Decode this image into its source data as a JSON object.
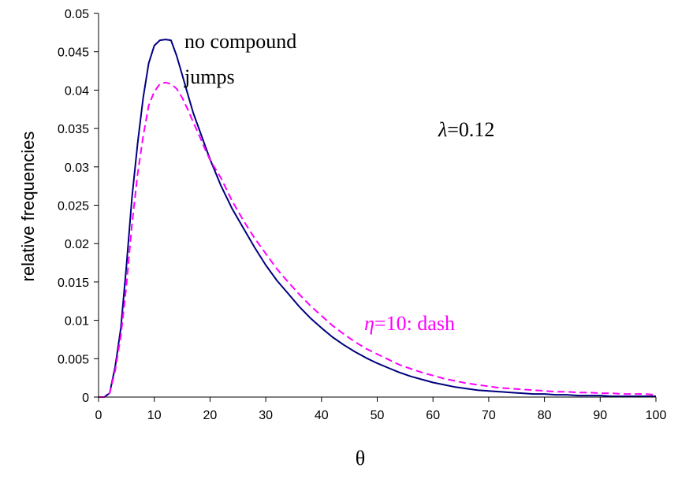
{
  "chart_data": {
    "type": "line",
    "xlabel": "θ",
    "ylabel": "relative frequencies",
    "xlim": [
      0,
      100
    ],
    "ylim": [
      0,
      0.05
    ],
    "x_ticks": [
      "0",
      "10",
      "20",
      "30",
      "40",
      "50",
      "60",
      "70",
      "80",
      "90",
      "100"
    ],
    "y_ticks": [
      "0",
      "0.005",
      "0.01",
      "0.015",
      "0.02",
      "0.025",
      "0.03",
      "0.035",
      "0.04",
      "0.045",
      "0.05"
    ],
    "grid": false,
    "series": [
      {
        "color": "#000080",
        "style": "solid",
        "x": [
          0,
          1,
          2,
          3,
          4,
          5,
          6,
          7,
          8,
          9,
          10,
          11,
          12,
          13,
          14,
          15,
          16,
          17,
          18,
          19,
          20,
          22,
          24,
          26,
          28,
          30,
          32,
          34,
          36,
          38,
          40,
          42,
          44,
          46,
          48,
          50,
          52,
          54,
          56,
          58,
          60,
          62,
          64,
          66,
          68,
          70,
          72,
          74,
          76,
          78,
          80,
          82,
          84,
          86,
          88,
          90,
          92,
          94,
          96,
          98,
          100
        ],
        "y": [
          0,
          0,
          0.0005,
          0.004,
          0.009,
          0.017,
          0.026,
          0.033,
          0.039,
          0.0435,
          0.0458,
          0.0465,
          0.0466,
          0.0465,
          0.0445,
          0.042,
          0.0395,
          0.037,
          0.035,
          0.033,
          0.031,
          0.0275,
          0.0245,
          0.022,
          0.0195,
          0.0172,
          0.0152,
          0.0135,
          0.0118,
          0.0103,
          0.009,
          0.0078,
          0.0068,
          0.0059,
          0.0051,
          0.0044,
          0.0038,
          0.0032,
          0.0027,
          0.0023,
          0.0019,
          0.0016,
          0.0013,
          0.0011,
          0.0009,
          0.0008,
          0.0007,
          0.0006,
          0.0005,
          0.0004,
          0.0004,
          0.0003,
          0.0003,
          0.0002,
          0.0002,
          0.0002,
          0.0001,
          0.0001,
          0.0001,
          0.0001,
          0.0001
        ]
      },
      {
        "color": "#FF00FF",
        "style": "dashed",
        "x": [
          0,
          1,
          2,
          3,
          4,
          5,
          6,
          7,
          8,
          9,
          10,
          11,
          12,
          13,
          14,
          15,
          16,
          17,
          18,
          19,
          20,
          22,
          24,
          26,
          28,
          30,
          32,
          34,
          36,
          38,
          40,
          42,
          44,
          46,
          48,
          50,
          52,
          54,
          56,
          58,
          60,
          62,
          64,
          66,
          68,
          70,
          72,
          74,
          76,
          78,
          80,
          82,
          84,
          86,
          88,
          90,
          92,
          94,
          96,
          98,
          100
        ],
        "y": [
          0,
          0,
          0.0005,
          0.0035,
          0.008,
          0.0145,
          0.0225,
          0.029,
          0.034,
          0.038,
          0.0398,
          0.0408,
          0.041,
          0.0408,
          0.0402,
          0.039,
          0.0375,
          0.0358,
          0.0342,
          0.0325,
          0.0309,
          0.0285,
          0.0255,
          0.023,
          0.0207,
          0.0187,
          0.0167,
          0.015,
          0.0134,
          0.0119,
          0.0106,
          0.0093,
          0.0082,
          0.0072,
          0.0063,
          0.0056,
          0.0049,
          0.0042,
          0.0037,
          0.0032,
          0.0028,
          0.0024,
          0.0021,
          0.0018,
          0.0016,
          0.0014,
          0.0012,
          0.0011,
          0.001,
          0.0009,
          0.0008,
          0.0007,
          0.0007,
          0.0006,
          0.0006,
          0.0005,
          0.0005,
          0.0004,
          0.0004,
          0.0004,
          0.0003
        ]
      }
    ],
    "annotations": {
      "no_compound_line1": "no compound",
      "no_compound_line2": "jumps",
      "lambda_symbol": "λ",
      "lambda_value": "=0.12",
      "eta_symbol": "η",
      "eta_value": "=10: dash"
    },
    "colors": {
      "axis": "#000000",
      "solid_series": "#000080",
      "dashed_series": "#FF00FF",
      "annotation_dash": "#FF00FF"
    }
  }
}
